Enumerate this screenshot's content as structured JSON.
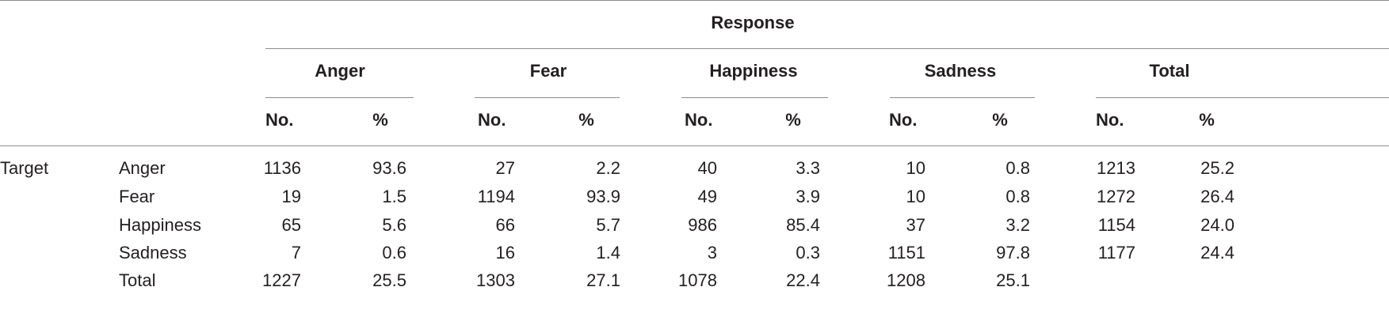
{
  "header": {
    "response_label": "Response",
    "groups": [
      "Anger",
      "Fear",
      "Happiness",
      "Sadness",
      "Total"
    ],
    "no_label": "No.",
    "pct_label": "%"
  },
  "target_label": "Target",
  "rows": [
    {
      "label": "Anger",
      "values": [
        "1136",
        "93.6",
        "27",
        "2.2",
        "40",
        "3.3",
        "10",
        "0.8",
        "1213",
        "25.2"
      ]
    },
    {
      "label": "Fear",
      "values": [
        "19",
        "1.5",
        "1194",
        "93.9",
        "49",
        "3.9",
        "10",
        "0.8",
        "1272",
        "26.4"
      ]
    },
    {
      "label": "Happiness",
      "values": [
        "65",
        "5.6",
        "66",
        "5.7",
        "986",
        "85.4",
        "37",
        "3.2",
        "1154",
        "24.0"
      ]
    },
    {
      "label": "Sadness",
      "values": [
        "7",
        "0.6",
        "16",
        "1.4",
        "3",
        "0.3",
        "1151",
        "97.8",
        "1177",
        "24.4"
      ]
    },
    {
      "label": "Total",
      "values": [
        "1227",
        "25.5",
        "1303",
        "27.1",
        "1078",
        "22.4",
        "1208",
        "25.1",
        "",
        ""
      ]
    }
  ]
}
